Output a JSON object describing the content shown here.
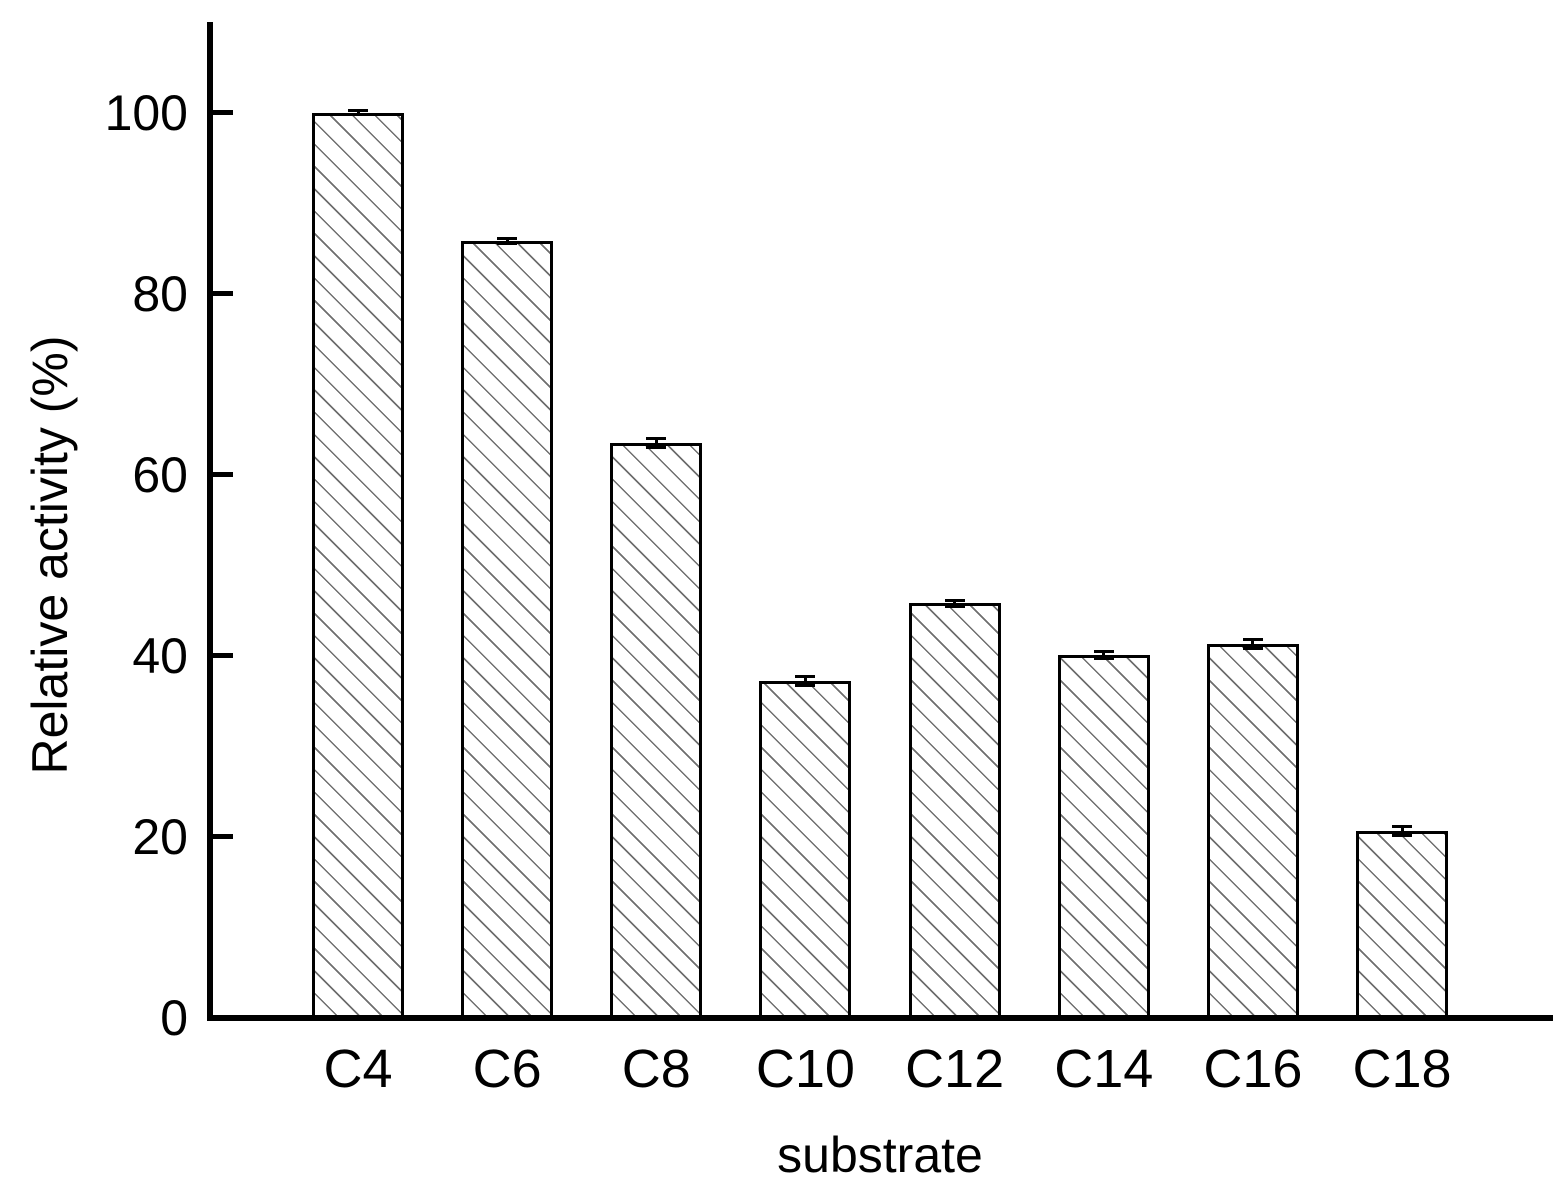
{
  "chart_data": {
    "type": "bar",
    "title": "",
    "categories": [
      "C4",
      "C6",
      "C8",
      "C10",
      "C12",
      "C14",
      "C16",
      "C18"
    ],
    "values": [
      100.0,
      85.8,
      63.5,
      37.2,
      45.8,
      40.1,
      41.3,
      20.7
    ],
    "errors": [
      0.2,
      0.3,
      0.5,
      0.5,
      0.3,
      0.4,
      0.5,
      0.5
    ],
    "xlabel": "substrate",
    "ylabel": "Relative activity (%)",
    "ylim": [
      0,
      110
    ],
    "yticks": [
      0,
      20,
      40,
      60,
      80,
      100
    ],
    "grid": false,
    "legend_position": "none",
    "bar_style": "white with diagonal hatch, black outline",
    "colors": {
      "axis": "#000000",
      "bar_outline": "#000000",
      "hatch_line": "#6e6e6e",
      "background": "#ffffff",
      "text": "#000000"
    }
  }
}
